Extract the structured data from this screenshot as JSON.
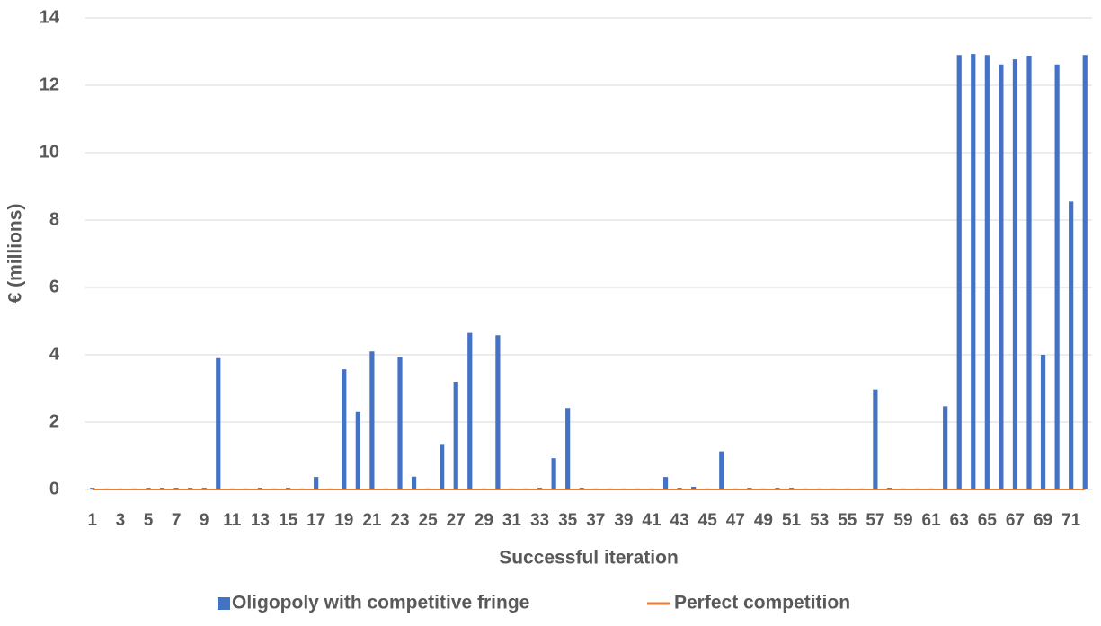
{
  "chart_data": {
    "type": "bar",
    "y_label": "€ (millions)",
    "x_label": "Successful iteration",
    "categories": [
      "1",
      null,
      "3",
      null,
      "5",
      null,
      "7",
      null,
      "9",
      null,
      "11",
      null,
      "13",
      null,
      "15",
      null,
      "17",
      null,
      "19",
      null,
      "21",
      null,
      "23",
      null,
      "25",
      null,
      "27",
      null,
      "29",
      null,
      "31",
      null,
      "33",
      null,
      "35",
      null,
      "37",
      null,
      "39",
      null,
      "41",
      null,
      "43",
      null,
      "45",
      null,
      "47",
      null,
      "49",
      null,
      "51",
      null,
      "53",
      null,
      "55",
      null,
      "57",
      null,
      "59",
      null,
      "61",
      null,
      "63",
      null,
      "65",
      null,
      "67",
      null,
      "69",
      null,
      "71",
      null
    ],
    "series": [
      {
        "name": "Oligopoly with competitive fringe",
        "color": "#4472c4",
        "type": "bar",
        "values": [
          0.05,
          0.03,
          0.03,
          0.03,
          0.05,
          0.05,
          0.05,
          0.05,
          0.05,
          3.9,
          0.03,
          0.03,
          0.05,
          0.03,
          0.05,
          0.03,
          0.37,
          0.03,
          3.57,
          2.3,
          4.1,
          0.03,
          3.93,
          0.38,
          0.03,
          1.35,
          3.2,
          4.65,
          0.03,
          4.58,
          0.03,
          0.03,
          0.05,
          0.93,
          2.42,
          0.05,
          0.03,
          0.03,
          0.03,
          0.03,
          0.03,
          0.37,
          0.05,
          0.08,
          0.03,
          1.13,
          0.03,
          0.05,
          0.03,
          0.05,
          0.05,
          0.03,
          0.03,
          0.03,
          0.03,
          0.03,
          2.97,
          0.05,
          0.03,
          0.03,
          0.03,
          2.47,
          12.9,
          12.93,
          12.9,
          12.62,
          12.77,
          12.88,
          4.0,
          12.62,
          8.55,
          12.9
        ]
      },
      {
        "name": "Perfect competition",
        "color": "#ed7d31",
        "type": "line",
        "values": [
          0,
          0,
          0,
          0,
          0,
          0,
          0,
          0,
          0,
          0,
          0,
          0,
          0,
          0,
          0,
          0,
          0,
          0,
          0,
          0,
          0,
          0,
          0,
          0,
          0,
          0,
          0,
          0,
          0,
          0,
          0,
          0,
          0,
          0,
          0,
          0,
          0,
          0,
          0,
          0,
          0,
          0,
          0,
          0,
          0,
          0,
          0,
          0,
          0,
          0,
          0,
          0,
          0,
          0,
          0,
          0,
          0,
          0,
          0,
          0,
          0,
          0,
          0,
          0,
          0,
          0,
          0,
          0,
          0,
          0,
          0,
          0
        ]
      }
    ],
    "ylim": [
      0,
      14
    ],
    "yticks": [
      0,
      2,
      4,
      6,
      8,
      10,
      12,
      14
    ],
    "grid": true,
    "legend": "bottom"
  }
}
